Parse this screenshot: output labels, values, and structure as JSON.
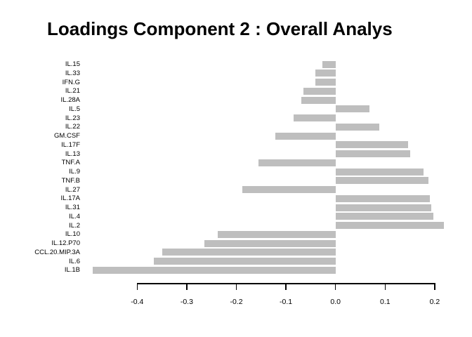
{
  "colors": {
    "bar": "#bebebe",
    "axis": "#000000",
    "text": "#000000",
    "background": "#ffffff"
  },
  "chart_data": {
    "type": "bar",
    "orientation": "horizontal",
    "title": "Loadings Component 2 : Overall Analys",
    "xlabel": "",
    "ylabel": "",
    "grid": false,
    "legend": null,
    "xlim": [
      -0.5,
      0.25
    ],
    "x_ticks": [
      -0.4,
      -0.3,
      -0.2,
      -0.1,
      0.0,
      0.1,
      0.2
    ],
    "x_tick_labels": [
      "-0.4",
      "-0.3",
      "-0.2",
      "-0.1",
      "0.0",
      "0.1",
      "0.2"
    ],
    "categories": [
      "IL.15",
      "IL.33",
      "IFN.G",
      "IL.21",
      "IL.28A",
      "IL.5",
      "IL.23",
      "IL.22",
      "GM.CSF",
      "IL.17F",
      "IL.13",
      "TNF.A",
      "IL.9",
      "TNF.B",
      "IL.27",
      "IL.17A",
      "IL.31",
      "IL.4",
      "IL.2",
      "IL.10",
      "IL.12.P70",
      "CCL.20.MIP.3A",
      "IL.6",
      "IL.1B"
    ],
    "values": [
      -0.027,
      -0.04,
      -0.04,
      -0.065,
      -0.069,
      0.068,
      -0.084,
      0.088,
      -0.122,
      0.146,
      0.15,
      -0.155,
      0.178,
      0.187,
      -0.188,
      0.19,
      0.193,
      0.197,
      0.219,
      -0.238,
      -0.264,
      -0.349,
      -0.366,
      -0.489
    ],
    "bar_color": "#bebebe"
  }
}
